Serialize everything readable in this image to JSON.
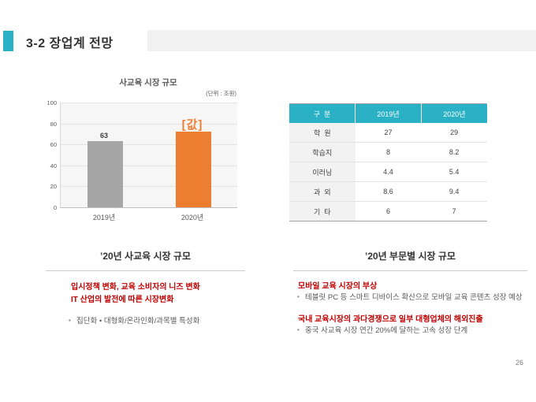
{
  "slide": {
    "title": "3-2 장업계 전망",
    "page_number": "26"
  },
  "chart_data": {
    "type": "bar",
    "title": "사교육 시장 규모",
    "unit_label": "(단위 : 조원)",
    "categories": [
      "2019년",
      "2020년"
    ],
    "values": [
      63,
      72
    ],
    "bar_labels": [
      "63",
      "[값]"
    ],
    "label_emphasis": [
      false,
      true
    ],
    "bar_colors": [
      "#A6A6A6",
      "#ED7D31"
    ],
    "ylim": [
      0,
      100
    ],
    "yticks": [
      0,
      20,
      40,
      60,
      80,
      100
    ],
    "grid": true,
    "legend": false,
    "xlabel": "",
    "ylabel": ""
  },
  "table": {
    "headers": [
      "구  분",
      "2019년",
      "2020년"
    ],
    "rows": [
      [
        "학  원",
        "27",
        "29"
      ],
      [
        "학습지",
        "8",
        "8.2"
      ],
      [
        "이러닝",
        "4.4",
        "5.4"
      ],
      [
        "과  외",
        "8.6",
        "9.4"
      ],
      [
        "기  타",
        "6",
        "7"
      ]
    ]
  },
  "left_section": {
    "heading": "’20년 사교육 시장 규모",
    "highlight_lines": [
      "입시정책 변화, 교육 소비자의 니즈 변화",
      "IT 산업의 발전에 따른 시장변화"
    ],
    "bullets": [
      "집단화 • 대형화/온라인화/과목별 특성화"
    ]
  },
  "right_section": {
    "heading": "’20년 부문별 시장 규모",
    "blocks": [
      {
        "highlight": "모바일 교육 시장의 부상",
        "bullets": [
          "테블릿 PC 등 스마트 디바이스 확산으로 모바일 교육 콘텐츠 성장 예상"
        ]
      },
      {
        "highlight": "국내 교육시장의 과다경쟁으로 일부 대형업체의 해외진출",
        "bullets": [
          "중국 사교육 시장 연간 20%에 달하는 고속 성장 단계"
        ]
      }
    ]
  },
  "colors": {
    "accent_teal": "#2BB1C6",
    "accent_orange": "#ED7D31",
    "bar_gray": "#A6A6A6",
    "highlight_red": "#C00000"
  }
}
